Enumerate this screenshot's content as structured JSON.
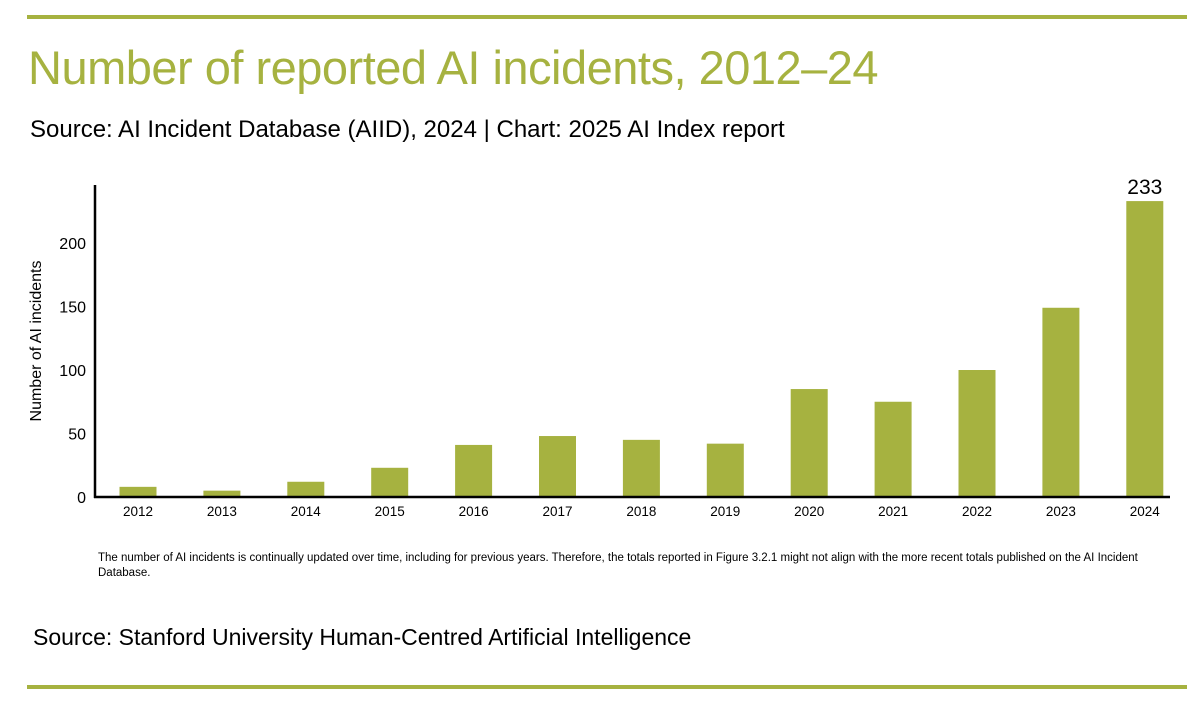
{
  "title": "Number of reported AI incidents, 2012–24",
  "subtitle": "Source: AI Incident Database (AIID), 2024 | Chart: 2025 AI Index report",
  "footnote": "The number of AI incidents is continually updated over time, including for previous years. Therefore, the totals reported in Figure 3.2.1 might not align with the more recent totals published on the AI Incident Database.",
  "source": "Source: Stanford University Human-Centred Artificial Intelligence",
  "colors": {
    "accent": "#a6b240",
    "bar": "#a6b240",
    "text": "#000000"
  },
  "chart_data": {
    "type": "bar",
    "categories": [
      "2012",
      "2013",
      "2014",
      "2015",
      "2016",
      "2017",
      "2018",
      "2019",
      "2020",
      "2021",
      "2022",
      "2023",
      "2024"
    ],
    "values": [
      8,
      5,
      12,
      23,
      41,
      48,
      45,
      42,
      85,
      75,
      100,
      149,
      233
    ],
    "data_labels": {
      "2024": "233"
    },
    "xlabel": "",
    "ylabel": "Number of AI incidents",
    "ylim": [
      0,
      240
    ],
    "yticks": [
      "0",
      "50",
      "100",
      "150",
      "200"
    ],
    "grid": false,
    "legend": "none"
  }
}
